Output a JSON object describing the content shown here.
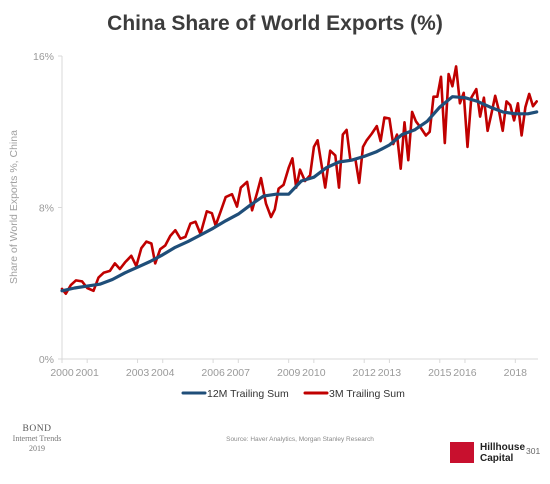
{
  "title": "China Share of World Exports (%)",
  "source": "Source: Haver Analytics, Morgan Stanley Research",
  "footer": {
    "bond_name": "BOND",
    "bond_subtitle": "Internet Trends",
    "bond_year": "2019",
    "brand_line1": "Hillhouse",
    "brand_line2": "Capital",
    "brand_color": "#c8102e",
    "page_number": "301"
  },
  "chart_data": {
    "type": "line",
    "title": "China Share of World Exports (%)",
    "ylabel": "Share of World Exports %, China",
    "xlabel": "",
    "xlim": [
      2000,
      2018.9
    ],
    "ylim": [
      0,
      16
    ],
    "x_ticks": [
      2000,
      2001,
      2003,
      2004,
      2006,
      2007,
      2009,
      2010,
      2012,
      2013,
      2015,
      2016,
      2018
    ],
    "x_tick_labels": [
      "2000",
      "2001",
      "2003",
      "2004",
      "2006",
      "2007",
      "2009",
      "2010",
      "2012",
      "2013",
      "2015",
      "2016",
      "2018"
    ],
    "y_ticks": [
      0,
      8,
      16
    ],
    "y_tick_labels": [
      "0%",
      "8%",
      "16%"
    ],
    "grid": false,
    "legend_position": "bottom",
    "series": [
      {
        "name": "12M Trailing Sum",
        "color": "#1f4e79",
        "x": [
          2000.0,
          2000.5,
          2001.0,
          2001.5,
          2002.0,
          2002.5,
          2003.0,
          2003.5,
          2004.0,
          2004.5,
          2005.0,
          2005.5,
          2006.0,
          2006.5,
          2007.0,
          2007.5,
          2008.0,
          2008.5,
          2009.0,
          2009.5,
          2010.0,
          2010.5,
          2011.0,
          2011.5,
          2012.0,
          2012.5,
          2013.0,
          2013.5,
          2014.0,
          2014.5,
          2015.0,
          2015.5,
          2016.0,
          2016.5,
          2017.0,
          2017.5,
          2018.0,
          2018.5,
          2018.85
        ],
        "y": [
          3.6,
          3.75,
          3.85,
          3.95,
          4.2,
          4.55,
          4.85,
          5.15,
          5.5,
          5.9,
          6.2,
          6.55,
          6.9,
          7.3,
          7.65,
          8.15,
          8.6,
          8.7,
          8.7,
          9.4,
          9.6,
          10.1,
          10.4,
          10.5,
          10.7,
          10.95,
          11.3,
          11.85,
          12.1,
          12.55,
          13.3,
          13.85,
          13.8,
          13.6,
          13.3,
          13.05,
          12.95,
          12.95,
          13.05
        ]
      },
      {
        "name": "3M Trailing Sum",
        "color": "#c00000",
        "x": [
          2000.0,
          2000.15,
          2000.35,
          2000.55,
          2000.8,
          2001.0,
          2001.25,
          2001.45,
          2001.65,
          2001.9,
          2002.1,
          2002.3,
          2002.5,
          2002.75,
          2002.95,
          2003.15,
          2003.35,
          2003.55,
          2003.7,
          2003.9,
          2004.1,
          2004.3,
          2004.5,
          2004.7,
          2004.9,
          2005.1,
          2005.3,
          2005.5,
          2005.75,
          2005.95,
          2006.1,
          2006.3,
          2006.5,
          2006.75,
          2006.95,
          2007.1,
          2007.35,
          2007.55,
          2007.75,
          2007.9,
          2008.1,
          2008.3,
          2008.45,
          2008.6,
          2008.8,
          2009.0,
          2009.15,
          2009.3,
          2009.45,
          2009.65,
          2009.85,
          2010.0,
          2010.15,
          2010.3,
          2010.45,
          2010.65,
          2010.85,
          2011.0,
          2011.15,
          2011.3,
          2011.45,
          2011.65,
          2011.8,
          2011.95,
          2012.1,
          2012.3,
          2012.5,
          2012.65,
          2012.8,
          2013.0,
          2013.15,
          2013.3,
          2013.45,
          2013.6,
          2013.75,
          2013.9,
          2014.05,
          2014.25,
          2014.45,
          2014.6,
          2014.75,
          2014.9,
          2015.05,
          2015.2,
          2015.35,
          2015.5,
          2015.65,
          2015.8,
          2015.95,
          2016.1,
          2016.25,
          2016.45,
          2016.6,
          2016.75,
          2016.9,
          2017.05,
          2017.2,
          2017.35,
          2017.5,
          2017.65,
          2017.8,
          2017.95,
          2018.1,
          2018.25,
          2018.4,
          2018.55,
          2018.7,
          2018.85
        ],
        "y": [
          3.7,
          3.45,
          3.9,
          4.15,
          4.1,
          3.75,
          3.6,
          4.3,
          4.55,
          4.65,
          5.05,
          4.75,
          5.1,
          5.45,
          4.9,
          5.85,
          6.2,
          6.1,
          5.05,
          5.8,
          6.0,
          6.5,
          6.8,
          6.35,
          6.45,
          7.15,
          7.25,
          6.6,
          7.8,
          7.7,
          7.05,
          7.8,
          8.55,
          8.7,
          8.05,
          9.05,
          9.35,
          7.85,
          8.8,
          9.55,
          8.2,
          7.5,
          7.9,
          9.0,
          9.2,
          10.1,
          10.6,
          9.05,
          10.0,
          9.4,
          9.7,
          11.2,
          11.55,
          10.3,
          9.05,
          11.0,
          10.75,
          9.05,
          11.85,
          12.1,
          10.5,
          10.55,
          9.3,
          11.2,
          11.55,
          11.9,
          12.3,
          11.5,
          12.75,
          12.7,
          11.35,
          11.85,
          10.05,
          12.5,
          10.5,
          13.05,
          12.55,
          12.2,
          11.8,
          12.0,
          13.85,
          13.85,
          14.9,
          11.4,
          15.05,
          14.4,
          15.45,
          13.5,
          14.05,
          11.2,
          13.8,
          14.25,
          12.8,
          13.8,
          12.05,
          12.95,
          13.9,
          13.1,
          12.05,
          13.6,
          13.4,
          12.6,
          13.5,
          11.8,
          13.3,
          14.0,
          13.35,
          13.6
        ]
      }
    ]
  }
}
